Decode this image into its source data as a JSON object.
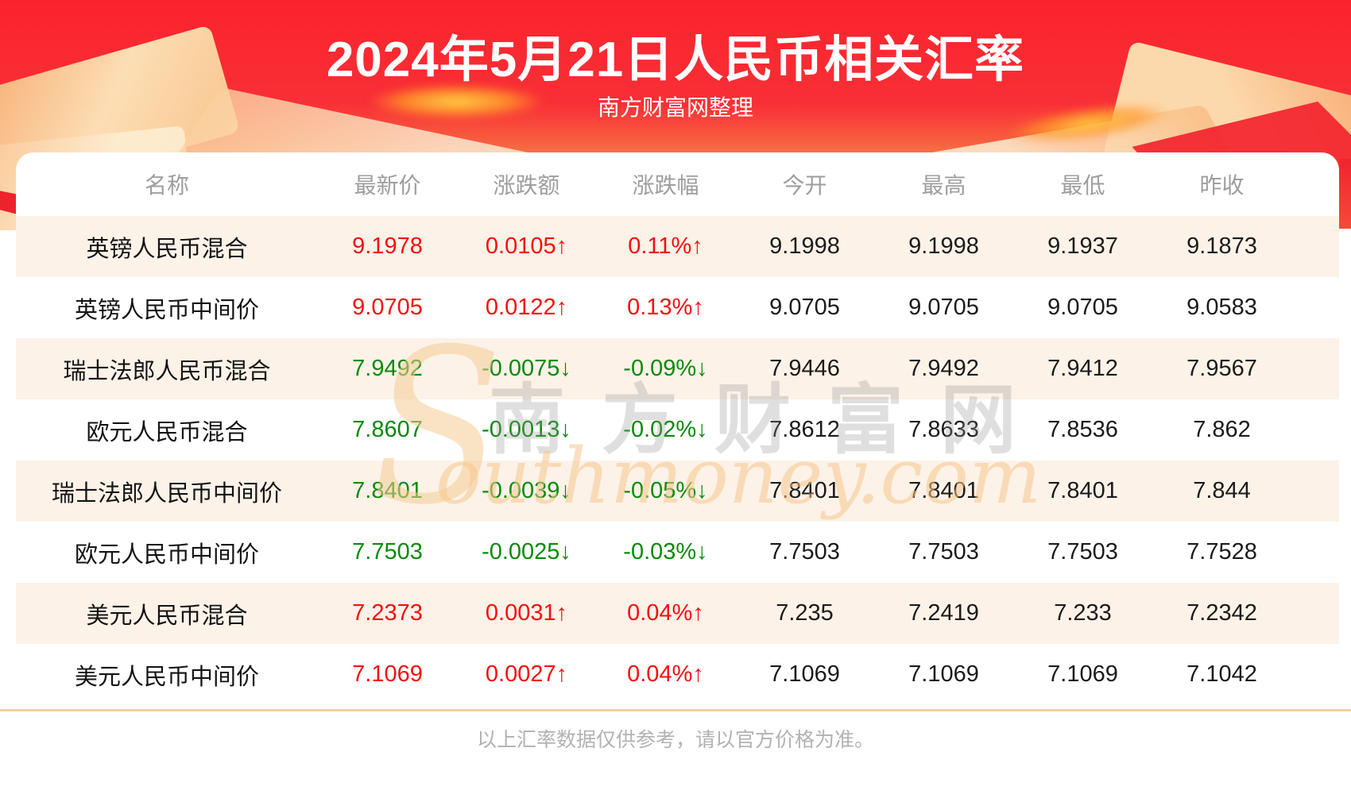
{
  "colors": {
    "up": "#f50f0f",
    "down": "#0b8a0b",
    "neutral": "#1b1b1b",
    "banner_red": "#fa232d",
    "stripe": "#fcf2e8",
    "divider": "#f5cfa2"
  },
  "chart_data": {
    "type": "table",
    "title": "2024年5月21日人民币相关汇率",
    "subtitle": "南方财富网整理",
    "footnote": "以上汇率数据仅供参考，请以官方价格为准。",
    "watermark": {
      "initial": "S",
      "cn": "南方财富网",
      "en": "outhmoney.com"
    },
    "columns": [
      {
        "key": "name",
        "label": "名称"
      },
      {
        "key": "latest",
        "label": "最新价"
      },
      {
        "key": "change",
        "label": "涨跌额"
      },
      {
        "key": "pct",
        "label": "涨跌幅"
      },
      {
        "key": "open",
        "label": "今开"
      },
      {
        "key": "high",
        "label": "最高"
      },
      {
        "key": "low",
        "label": "最低"
      },
      {
        "key": "prev",
        "label": "昨收"
      }
    ],
    "colored_columns": [
      "latest",
      "change",
      "pct"
    ],
    "rows": [
      {
        "name": "英镑人民币混合",
        "latest": "9.1978",
        "change": "0.0105↑",
        "pct": "0.11%↑",
        "open": "9.1998",
        "high": "9.1998",
        "low": "9.1937",
        "prev": "9.1873",
        "direction": "up"
      },
      {
        "name": "英镑人民币中间价",
        "latest": "9.0705",
        "change": "0.0122↑",
        "pct": "0.13%↑",
        "open": "9.0705",
        "high": "9.0705",
        "low": "9.0705",
        "prev": "9.0583",
        "direction": "up"
      },
      {
        "name": "瑞士法郎人民币混合",
        "latest": "7.9492",
        "change": "-0.0075↓",
        "pct": "-0.09%↓",
        "open": "7.9446",
        "high": "7.9492",
        "low": "7.9412",
        "prev": "7.9567",
        "direction": "down"
      },
      {
        "name": "欧元人民币混合",
        "latest": "7.8607",
        "change": "-0.0013↓",
        "pct": "-0.02%↓",
        "open": "7.8612",
        "high": "7.8633",
        "low": "7.8536",
        "prev": "7.862",
        "direction": "down"
      },
      {
        "name": "瑞士法郎人民币中间价",
        "latest": "7.8401",
        "change": "-0.0039↓",
        "pct": "-0.05%↓",
        "open": "7.8401",
        "high": "7.8401",
        "low": "7.8401",
        "prev": "7.844",
        "direction": "down"
      },
      {
        "name": "欧元人民币中间价",
        "latest": "7.7503",
        "change": "-0.0025↓",
        "pct": "-0.03%↓",
        "open": "7.7503",
        "high": "7.7503",
        "low": "7.7503",
        "prev": "7.7528",
        "direction": "down"
      },
      {
        "name": "美元人民币混合",
        "latest": "7.2373",
        "change": "0.0031↑",
        "pct": "0.04%↑",
        "open": "7.235",
        "high": "7.2419",
        "low": "7.233",
        "prev": "7.2342",
        "direction": "up"
      },
      {
        "name": "美元人民币中间价",
        "latest": "7.1069",
        "change": "0.0027↑",
        "pct": "0.04%↑",
        "open": "7.1069",
        "high": "7.1069",
        "low": "7.1069",
        "prev": "7.1042",
        "direction": "up"
      }
    ]
  }
}
